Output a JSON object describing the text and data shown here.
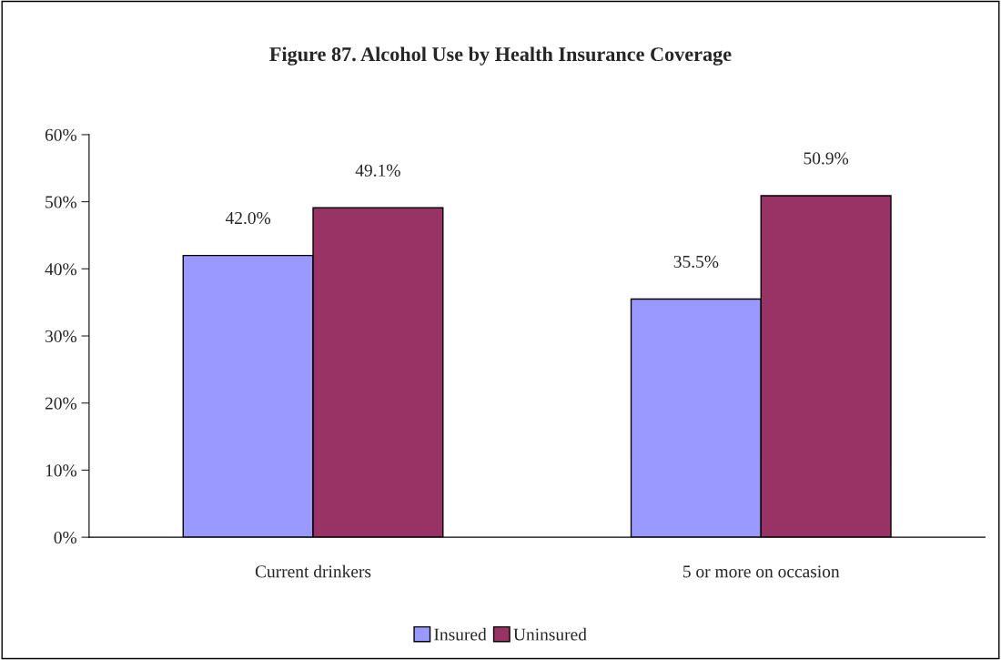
{
  "chart_data": {
    "type": "bar",
    "title": "Figure 87. Alcohol Use by Health Insurance Coverage",
    "categories": [
      "Current drinkers",
      "5 or more on occasion"
    ],
    "series": [
      {
        "name": "Insured",
        "color": "#9999ff",
        "values": [
          42.0,
          35.5
        ],
        "value_labels": [
          "42.0%",
          "35.5%"
        ]
      },
      {
        "name": "Uninsured",
        "color": "#993366",
        "values": [
          49.1,
          50.9
        ],
        "value_labels": [
          "49.1%",
          "50.9%"
        ]
      }
    ],
    "ylim": [
      0,
      60
    ],
    "yticks": [
      {
        "value": 0,
        "label": "0%"
      },
      {
        "value": 10,
        "label": "10%"
      },
      {
        "value": 20,
        "label": "20%"
      },
      {
        "value": 30,
        "label": "30%"
      },
      {
        "value": 40,
        "label": "40%"
      },
      {
        "value": 50,
        "label": "50%"
      },
      {
        "value": 60,
        "label": "60%"
      }
    ],
    "grid": false,
    "legend": "bottom"
  }
}
